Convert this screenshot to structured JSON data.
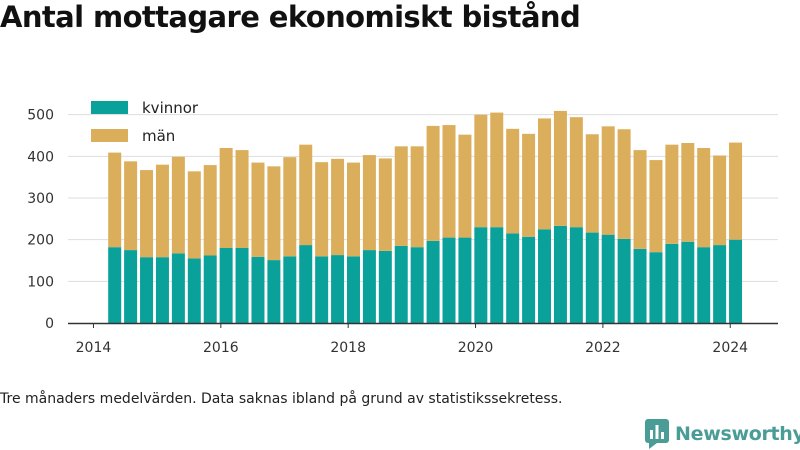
{
  "title": "Antal mottagare ekonomiskt bistånd",
  "note": "Tre månaders medelvärden. Data saknas ibland på grund av statistikssekretess.",
  "brand": {
    "name": "Newsworthy",
    "color": "#4a9d97"
  },
  "colors": {
    "kvinnor": "#0aa19a",
    "man": "#dbae5b",
    "grid": "#dddddd",
    "axis": "#333333"
  },
  "chart_data": {
    "type": "bar",
    "stacked": true,
    "title": "Antal mottagare ekonomiskt bistånd",
    "xlabel": "",
    "ylabel": "",
    "ylim": [
      0,
      540
    ],
    "xlim": [
      2013.6,
      2024.75
    ],
    "yticks": [
      "0",
      "100",
      "200",
      "300",
      "400",
      "500"
    ],
    "xticks": [
      "2014",
      "2016",
      "2018",
      "2020",
      "2022",
      "2024"
    ],
    "grid": true,
    "legend_position": "top-left",
    "x": [
      "2014-05",
      "2014-08",
      "2014-11",
      "2015-02",
      "2015-05",
      "2015-08",
      "2015-11",
      "2016-02",
      "2016-05",
      "2016-08",
      "2016-11",
      "2017-02",
      "2017-05",
      "2017-08",
      "2017-11",
      "2018-02",
      "2018-05",
      "2018-08",
      "2018-11",
      "2019-02",
      "2019-05",
      "2019-08",
      "2019-11",
      "2020-02",
      "2020-05",
      "2020-08",
      "2020-11",
      "2021-02",
      "2021-05",
      "2021-08",
      "2021-11",
      "2022-02",
      "2022-05",
      "2022-08",
      "2022-11",
      "2023-02",
      "2023-05",
      "2023-08",
      "2023-11",
      "2024-02"
    ],
    "series": [
      {
        "name": "kvinnor",
        "values": [
          182,
          175,
          158,
          158,
          167,
          155,
          162,
          180,
          180,
          159,
          151,
          160,
          187,
          160,
          163,
          160,
          175,
          173,
          185,
          182,
          197,
          205,
          205,
          230,
          230,
          215,
          207,
          225,
          233,
          230,
          217,
          212,
          202,
          178,
          170,
          190,
          195,
          182,
          187,
          200
        ]
      },
      {
        "name": "män",
        "values": [
          227,
          213,
          209,
          222,
          232,
          209,
          217,
          240,
          235,
          226,
          225,
          238,
          241,
          226,
          231,
          225,
          228,
          222,
          239,
          242,
          276,
          270,
          247,
          270,
          275,
          251,
          247,
          266,
          276,
          264,
          236,
          260,
          263,
          237,
          221,
          238,
          237,
          238,
          215,
          233
        ]
      }
    ]
  }
}
